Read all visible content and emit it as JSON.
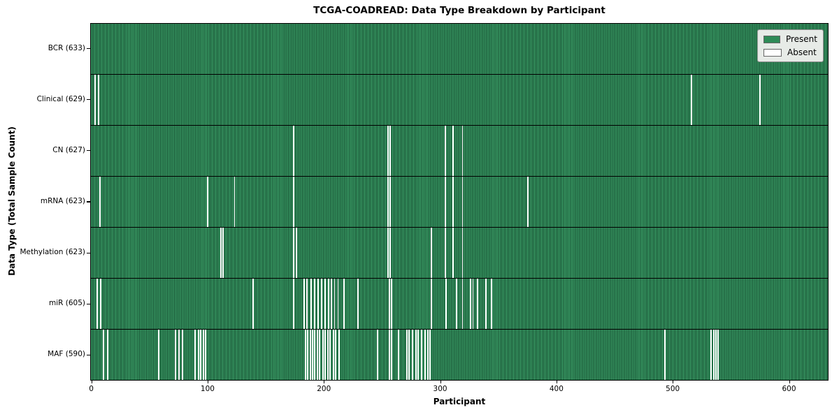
{
  "title": "TCGA-COADREAD: Data Type Breakdown by Participant",
  "xlabel": "Participant",
  "ylabel": "Data Type (Total Sample Count)",
  "legend": {
    "present_label": "Present",
    "absent_label": "Absent"
  },
  "colors": {
    "present": "#2e8b57",
    "present_stripe_light": "#35915e",
    "present_stripe_dark": "#1b5838",
    "absent": "#ffffff",
    "legend_bg": "#e7ebe7",
    "axis": "#000000"
  },
  "chart_data": {
    "type": "heatmap",
    "title": "TCGA-COADREAD: Data Type Breakdown by Participant",
    "xlabel": "Participant",
    "ylabel": "Data Type (Total Sample Count)",
    "legend_entries": [
      "Present",
      "Absent"
    ],
    "legend_position": "upper right",
    "grid": false,
    "x_range": [
      0,
      633
    ],
    "n_participants": 633,
    "x_ticks": [
      0,
      100,
      200,
      300,
      400,
      500,
      600
    ],
    "rows": [
      {
        "name": "BCR",
        "label": "BCR (633)",
        "present_count": 633,
        "absent_count": 0,
        "absent_participants": []
      },
      {
        "name": "Clinical",
        "label": "Clinical (629)",
        "present_count": 629,
        "absent_count": 4,
        "absent_participants": [
          3,
          6,
          516,
          575
        ]
      },
      {
        "name": "CN",
        "label": "CN (627)",
        "present_count": 627,
        "absent_count": 6,
        "absent_participants": [
          174,
          255,
          257,
          304,
          311,
          319
        ]
      },
      {
        "name": "mRNA",
        "label": "mRNA (623)",
        "present_count": 623,
        "absent_count": 10,
        "absent_participants": [
          7,
          100,
          123,
          174,
          255,
          257,
          304,
          311,
          319,
          375
        ]
      },
      {
        "name": "Methylation",
        "label": "Methylation (623)",
        "present_count": 623,
        "absent_count": 10,
        "absent_participants": [
          111,
          113,
          174,
          176,
          255,
          257,
          292,
          304,
          311,
          319
        ]
      },
      {
        "name": "miR",
        "label": "miR (605)",
        "present_count": 605,
        "absent_count": 28,
        "absent_participants": [
          5,
          8,
          139,
          174,
          183,
          185,
          189,
          192,
          195,
          198,
          201,
          204,
          206,
          209,
          212,
          217,
          229,
          256,
          258,
          292,
          305,
          314,
          319,
          326,
          328,
          332,
          339,
          344
        ]
      },
      {
        "name": "MAF",
        "label": "MAF (590)",
        "present_count": 590,
        "absent_count": 43,
        "absent_participants": [
          10,
          14,
          58,
          72,
          75,
          78,
          89,
          92,
          94,
          96,
          98,
          184,
          186,
          188,
          190,
          192,
          194,
          196,
          199,
          201,
          203,
          205,
          208,
          210,
          213,
          246,
          256,
          258,
          264,
          271,
          273,
          276,
          279,
          281,
          284,
          287,
          289,
          291,
          493,
          533,
          535,
          537,
          539
        ]
      }
    ]
  }
}
